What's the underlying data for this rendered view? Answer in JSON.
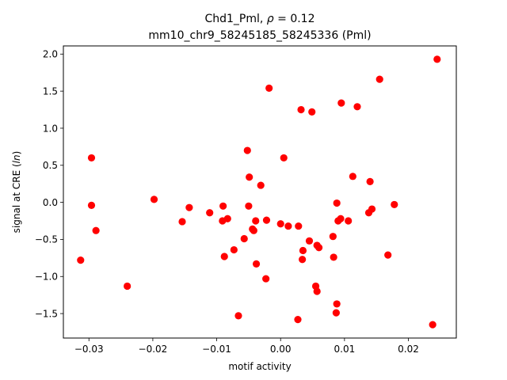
{
  "chart_data": {
    "type": "scatter",
    "title": "Chd1_Pml, ρ = 0.12",
    "subtitle": "mm10_chr9_58245185_58245336 (Pml)",
    "xlabel": "motif activity",
    "ylabel": "signal at CRE (ln)",
    "xlim": [
      -0.034,
      0.0275
    ],
    "ylim": [
      -1.83,
      2.11
    ],
    "xticks": [
      -0.03,
      -0.02,
      -0.01,
      0.0,
      0.01,
      0.02
    ],
    "xtick_labels": [
      "−0.03",
      "−0.02",
      "−0.01",
      "0.00",
      "0.01",
      "0.02"
    ],
    "yticks": [
      -1.5,
      -1.0,
      -0.5,
      0.0,
      0.5,
      1.0,
      1.5,
      2.0
    ],
    "ytick_labels": [
      "−1.5",
      "−1.0",
      "−0.5",
      "0.0",
      "0.5",
      "1.0",
      "1.5",
      "2.0"
    ],
    "grid": false,
    "marker_color": "#ff0000",
    "points": [
      {
        "x": 0.0245,
        "y": 1.93
      },
      {
        "x": 0.0155,
        "y": 1.66
      },
      {
        "x": -0.0018,
        "y": 1.54
      },
      {
        "x": 0.0095,
        "y": 1.34
      },
      {
        "x": 0.012,
        "y": 1.29
      },
      {
        "x": 0.0032,
        "y": 1.25
      },
      {
        "x": 0.0049,
        "y": 1.22
      },
      {
        "x": -0.0052,
        "y": 0.7
      },
      {
        "x": -0.0296,
        "y": 0.6
      },
      {
        "x": 0.0005,
        "y": 0.6
      },
      {
        "x": 0.0113,
        "y": 0.35
      },
      {
        "x": -0.0049,
        "y": 0.34
      },
      {
        "x": 0.014,
        "y": 0.28
      },
      {
        "x": -0.0031,
        "y": 0.23
      },
      {
        "x": -0.0198,
        "y": 0.04
      },
      {
        "x": -0.0296,
        "y": -0.04
      },
      {
        "x": -0.009,
        "y": -0.05
      },
      {
        "x": -0.005,
        "y": -0.05
      },
      {
        "x": 0.0088,
        "y": -0.01
      },
      {
        "x": 0.0178,
        "y": -0.03
      },
      {
        "x": -0.0143,
        "y": -0.07
      },
      {
        "x": 0.0143,
        "y": -0.09
      },
      {
        "x": 0.0138,
        "y": -0.14
      },
      {
        "x": -0.0111,
        "y": -0.14
      },
      {
        "x": -0.0083,
        "y": -0.22
      },
      {
        "x": 0.0094,
        "y": -0.22
      },
      {
        "x": 0.009,
        "y": -0.25
      },
      {
        "x": 0.0106,
        "y": -0.25
      },
      {
        "x": -0.0091,
        "y": -0.25
      },
      {
        "x": -0.0039,
        "y": -0.25
      },
      {
        "x": -0.0022,
        "y": -0.24
      },
      {
        "x": -0.0154,
        "y": -0.26
      },
      {
        "x": 0.0,
        "y": -0.29
      },
      {
        "x": 0.0012,
        "y": -0.32
      },
      {
        "x": 0.0028,
        "y": -0.32
      },
      {
        "x": -0.0044,
        "y": -0.36
      },
      {
        "x": -0.0042,
        "y": -0.38
      },
      {
        "x": -0.0289,
        "y": -0.38
      },
      {
        "x": 0.0082,
        "y": -0.46
      },
      {
        "x": -0.0057,
        "y": -0.49
      },
      {
        "x": 0.0045,
        "y": -0.52
      },
      {
        "x": 0.0057,
        "y": -0.58
      },
      {
        "x": 0.006,
        "y": -0.61
      },
      {
        "x": -0.0073,
        "y": -0.64
      },
      {
        "x": 0.0035,
        "y": -0.65
      },
      {
        "x": 0.0168,
        "y": -0.71
      },
      {
        "x": -0.0088,
        "y": -0.73
      },
      {
        "x": 0.0083,
        "y": -0.74
      },
      {
        "x": 0.0034,
        "y": -0.77
      },
      {
        "x": -0.0313,
        "y": -0.78
      },
      {
        "x": -0.0038,
        "y": -0.83
      },
      {
        "x": -0.0023,
        "y": -1.03
      },
      {
        "x": 0.0055,
        "y": -1.13
      },
      {
        "x": -0.024,
        "y": -1.13
      },
      {
        "x": 0.0057,
        "y": -1.2
      },
      {
        "x": 0.0088,
        "y": -1.37
      },
      {
        "x": 0.0087,
        "y": -1.49
      },
      {
        "x": -0.0066,
        "y": -1.53
      },
      {
        "x": 0.0027,
        "y": -1.58
      },
      {
        "x": 0.0238,
        "y": -1.65
      }
    ]
  }
}
